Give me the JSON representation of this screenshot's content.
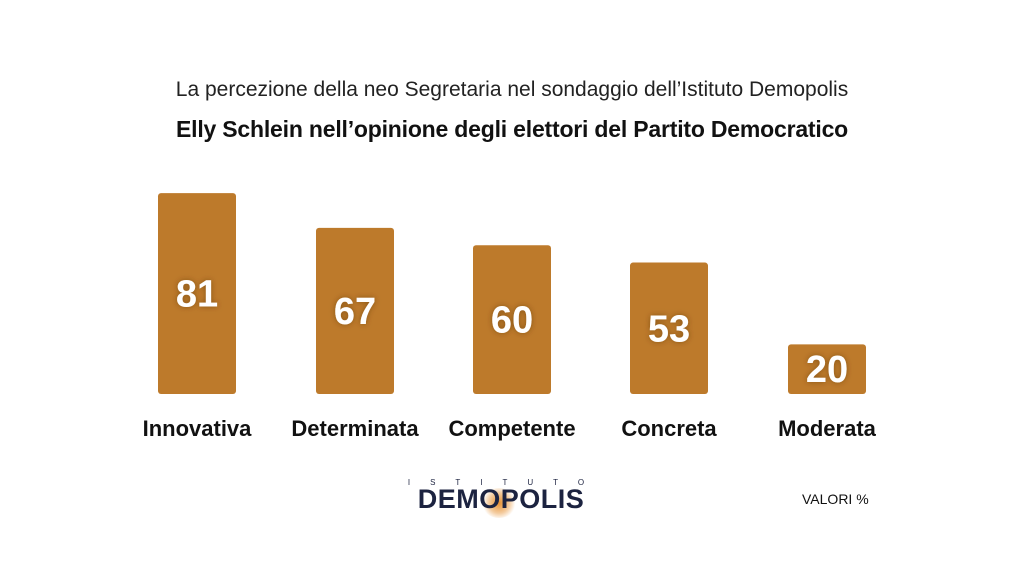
{
  "subtitle": "La percezione della neo Segretaria nel sondaggio dell’Istituto Demopolis",
  "title": "Elly Schlein nell’opinione degli elettori del Partito Democratico",
  "units_label": "VALORI %",
  "logo": {
    "top_text": "ISTITUTO",
    "word": "DEMOPOLIS"
  },
  "colors": {
    "bar": "#bd7a2b",
    "text": "#111111",
    "logo": "#1c2340"
  },
  "chart_data": {
    "type": "bar",
    "title": "Elly Schlein nell’opinione degli elettori del Partito Democratico",
    "categories": [
      "Innovativa",
      "Determinata",
      "Competente",
      "Concreta",
      "Moderata"
    ],
    "values": [
      81,
      67,
      60,
      53,
      20
    ],
    "unit": "%",
    "ylim": [
      0,
      100
    ],
    "grid": false,
    "legend": "none"
  }
}
